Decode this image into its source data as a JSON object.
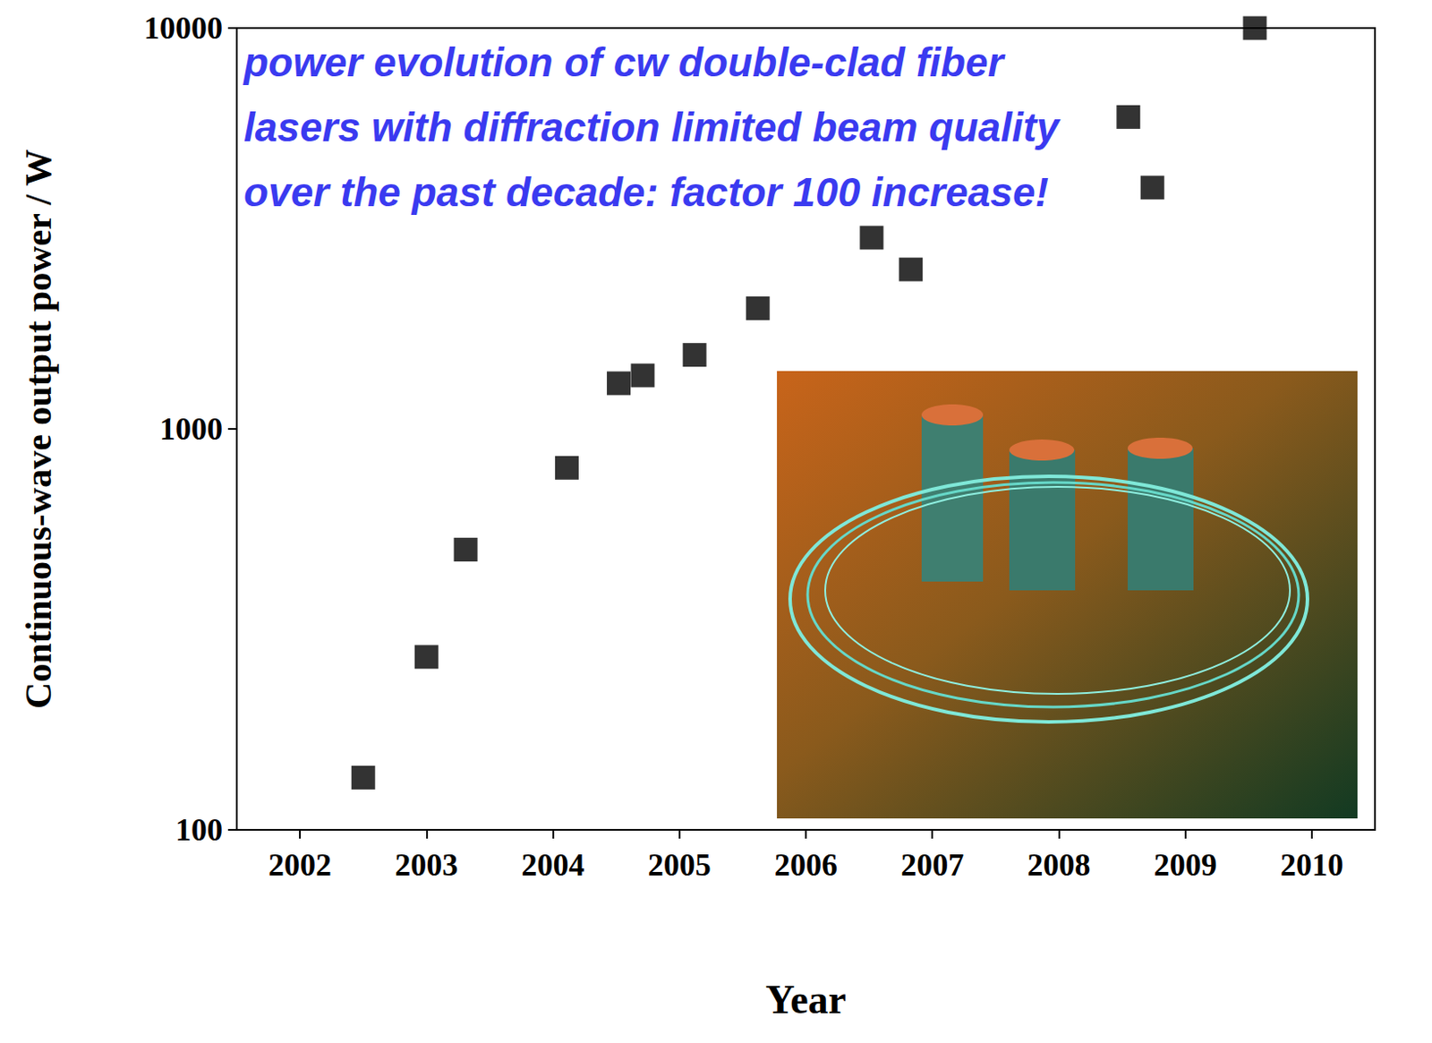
{
  "chart_data": {
    "type": "scatter",
    "annotation": "power evolution of cw double-clad fiber lasers with diffraction limited beam quality over the past decade: factor 100 increase!",
    "x_label": "Year",
    "y_label": "Continuous-wave output power / W",
    "x": [
      2002.5,
      2003.0,
      2003.31,
      2004.11,
      2004.52,
      2004.71,
      2005.12,
      2005.62,
      2006.52,
      2006.83,
      2008.55,
      2008.74,
      2009.55
    ],
    "values": [
      135,
      270,
      500,
      800,
      1300,
      1360,
      1530,
      2000,
      3000,
      2500,
      6000,
      4000,
      10000
    ],
    "color": "#000000",
    "marker": "square",
    "xlim": [
      2001.5,
      2010.5
    ],
    "xticks": [
      2002,
      2003,
      2004,
      2005,
      2006,
      2007,
      2008,
      2009,
      2010
    ],
    "ylim": [
      100,
      10000
    ],
    "yticks": [
      100,
      1000,
      10000
    ],
    "log": "y",
    "grid": false
  }
}
